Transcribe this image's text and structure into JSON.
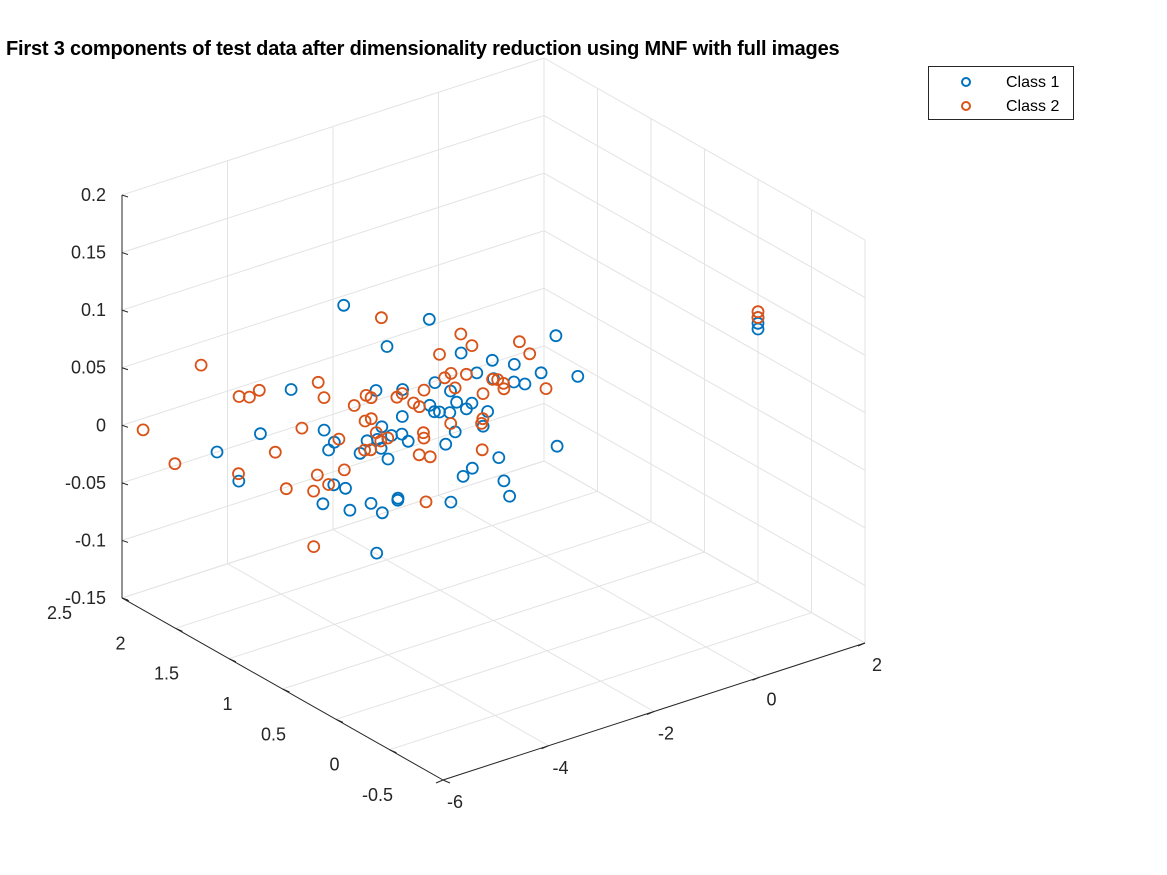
{
  "chart_data": {
    "type": "scatter",
    "title": "First 3 components of test data after dimensionality reduction using MNF with full images",
    "xlabel": "",
    "ylabel": "",
    "zlabel": "",
    "view": "3d",
    "grid": true,
    "legend_position": "top-right",
    "xlim": [
      -6,
      2
    ],
    "ylim": [
      -0.5,
      2.5
    ],
    "zlim": [
      -0.15,
      0.2
    ],
    "xticks": [
      "-6",
      "-4",
      "-2",
      "0",
      "2"
    ],
    "yticks": [
      "-0.5",
      "0",
      "0.5",
      "1",
      "1.5",
      "2",
      "2.5"
    ],
    "zticks": [
      "-0.15",
      "-0.1",
      "-0.05",
      "0",
      "0.05",
      "0.1",
      "0.15",
      "0.2"
    ],
    "series": [
      {
        "name": "Class 1",
        "color": "#0072BD",
        "points": [
          [
            -3.2,
            2.3,
            0.0
          ],
          [
            -2.0,
            2.4,
            0.05
          ],
          [
            -4.4,
            1.4,
            0.03
          ],
          [
            -4.6,
            0.9,
            0.05
          ],
          [
            -4.8,
            2.0,
            -0.04
          ],
          [
            -4.2,
            1.0,
            0.04
          ],
          [
            -4.0,
            1.0,
            0.02
          ],
          [
            -4.2,
            0.2,
            0.05
          ],
          [
            -2.2,
            1.1,
            -0.02
          ],
          [
            -3.2,
            1.5,
            -0.1
          ],
          [
            -2.7,
            1.8,
            -0.08
          ],
          [
            -2.2,
            2.0,
            0.0
          ],
          [
            -1.6,
            1.5,
            0.05
          ],
          [
            -2.5,
            1.2,
            0.0
          ],
          [
            -2.0,
            1.0,
            0.06
          ],
          [
            -3.0,
            1.4,
            -0.05
          ],
          [
            -1.5,
            1.5,
            0.0
          ],
          [
            -1.8,
            1.3,
            0.02
          ],
          [
            -2.4,
            1.6,
            -0.02
          ],
          [
            -1.2,
            1.2,
            0.05
          ],
          [
            -2.8,
            1.5,
            -0.06
          ],
          [
            -2.1,
            1.8,
            0.01
          ],
          [
            -1.9,
            1.0,
            -0.01
          ],
          [
            -1.3,
            1.4,
            0.0
          ],
          [
            -2.6,
            1.3,
            0.03
          ],
          [
            -1.7,
            2.0,
            -0.03
          ],
          [
            -3.3,
            1.9,
            -0.03
          ],
          [
            -1.1,
            1.6,
            0.02
          ],
          [
            -2.3,
            1.4,
            0.04
          ],
          [
            -3.1,
            1.8,
            -0.08
          ],
          [
            -1.6,
            1.1,
            -0.04
          ],
          [
            -2.9,
            1.6,
            0.0
          ],
          [
            -1.4,
            1.8,
            -0.02
          ],
          [
            -2.0,
            1.6,
            0.08
          ],
          [
            -2.5,
            2.0,
            -0.05
          ],
          [
            -1.0,
            1.2,
            0.03
          ],
          [
            -0.6,
            1.5,
            0.01
          ],
          [
            -0.4,
            1.8,
            0.01
          ],
          [
            -1.9,
            2.1,
            -0.06
          ],
          [
            -2.7,
            1.0,
            0.05
          ],
          [
            -3.5,
            1.3,
            -0.05
          ],
          [
            -1.2,
            0.8,
            0.0
          ],
          [
            -2.4,
            0.9,
            0.03
          ],
          [
            -1.5,
            2.2,
            -0.06
          ],
          [
            -2.2,
            1.3,
            -0.06
          ],
          [
            -3.0,
            2.0,
            -0.07
          ],
          [
            -1.8,
            1.5,
            0.02
          ],
          [
            -0.9,
            1.9,
            -0.05
          ],
          [
            -2.6,
            1.7,
            0.06
          ],
          [
            -1.3,
            0.9,
            0.06
          ],
          [
            -4.4,
            1.2,
            -0.01
          ],
          [
            -2.1,
            0.8,
            -0.03
          ],
          [
            -0.2,
            1.1,
            0.03
          ],
          [
            -1.7,
            1.7,
            -0.01
          ],
          [
            -3.8,
            1.6,
            0.0
          ],
          [
            -1.1,
            2.3,
            -0.07
          ],
          [
            -2.8,
            2.2,
            -0.1
          ],
          [
            -0.8,
            2.0,
            -0.04
          ],
          [
            0.4,
            1.6,
            0.03
          ],
          [
            2.0,
            0.5,
            0.08
          ],
          [
            2.0,
            0.5,
            0.075
          ],
          [
            2.0,
            0.5,
            0.07
          ],
          [
            -5.0,
            1.7,
            0.02
          ],
          [
            -4.2,
            2.5,
            -0.05
          ]
        ]
      },
      {
        "name": "Class 2",
        "color": "#D95319",
        "points": [
          [
            -5.2,
            2.4,
            -0.04
          ],
          [
            -5.2,
            1.8,
            0.05
          ],
          [
            -4.6,
            2.0,
            0.03
          ],
          [
            -4.4,
            2.2,
            -0.05
          ],
          [
            -3.5,
            2.3,
            -0.05
          ],
          [
            -3.9,
            2.0,
            -0.06
          ],
          [
            -4.5,
            2.5,
            0.03
          ],
          [
            -3.4,
            1.5,
            0.04
          ],
          [
            -4.2,
            1.5,
            0.05
          ],
          [
            -3.0,
            1.2,
            0.04
          ],
          [
            -2.5,
            1.5,
            0.02
          ],
          [
            -3.6,
            2.4,
            0.0
          ],
          [
            -2.3,
            2.0,
            -0.05
          ],
          [
            -1.8,
            1.3,
            0.07
          ],
          [
            -1.5,
            1.5,
            0.03
          ],
          [
            -2.4,
            1.2,
            0.06
          ],
          [
            -2.0,
            1.4,
            0.0
          ],
          [
            -1.4,
            1.8,
            0.03
          ],
          [
            -3.1,
            1.6,
            0.01
          ],
          [
            -2.6,
            1.8,
            -0.02
          ],
          [
            -1.2,
            1.5,
            -0.04
          ],
          [
            -1.7,
            2.0,
            -0.01
          ],
          [
            -2.2,
            1.0,
            0.05
          ],
          [
            -1.0,
            1.4,
            0.02
          ],
          [
            -3.3,
            1.9,
            -0.06
          ],
          [
            -1.9,
            1.7,
            -0.03
          ],
          [
            -2.8,
            1.3,
            -0.01
          ],
          [
            -0.8,
            1.6,
            0.01
          ],
          [
            -1.6,
            1.1,
            0.04
          ],
          [
            -2.0,
            2.2,
            -0.04
          ],
          [
            -1.3,
            2.0,
            -0.05
          ],
          [
            -0.5,
            1.7,
            0.0
          ],
          [
            -2.1,
            1.6,
            0.02
          ],
          [
            -1.1,
            1.9,
            0.0
          ],
          [
            -2.7,
            2.1,
            -0.04
          ],
          [
            -0.9,
            1.3,
            0.06
          ],
          [
            -2.9,
            1.7,
            0.02
          ],
          [
            -1.5,
            2.3,
            -0.07
          ],
          [
            -0.7,
            2.0,
            -0.02
          ],
          [
            -3.7,
            1.8,
            0.04
          ],
          [
            -2.5,
            2.4,
            -0.09
          ],
          [
            -3.4,
            2.1,
            -0.02
          ],
          [
            -0.3,
            1.5,
            0.03
          ],
          [
            -1.8,
            2.4,
            -0.04
          ],
          [
            -0.6,
            1.2,
            0.02
          ],
          [
            -2.3,
            1.9,
            0.07
          ],
          [
            -1.2,
            1.7,
            0.05
          ],
          [
            -1.6,
            2.1,
            -0.02
          ],
          [
            -3.8,
            1.1,
            0.03
          ],
          [
            -0.4,
            1.9,
            -0.05
          ],
          [
            -2.0,
            1.1,
            0.02
          ],
          [
            -4.6,
            1.4,
            -0.02
          ],
          [
            -2.8,
            2.0,
            -0.06
          ],
          [
            2.0,
            0.5,
            0.085
          ],
          [
            2.0,
            0.5,
            0.08
          ],
          [
            -4.7,
            0.3,
            0.03
          ],
          [
            -5.6,
            2.5,
            -0.01
          ],
          [
            -4.8,
            1.3,
            -0.06
          ],
          [
            -1.4,
            2.5,
            -0.09
          ],
          [
            -3.2,
            1.0,
            0.01
          ]
        ]
      }
    ]
  }
}
